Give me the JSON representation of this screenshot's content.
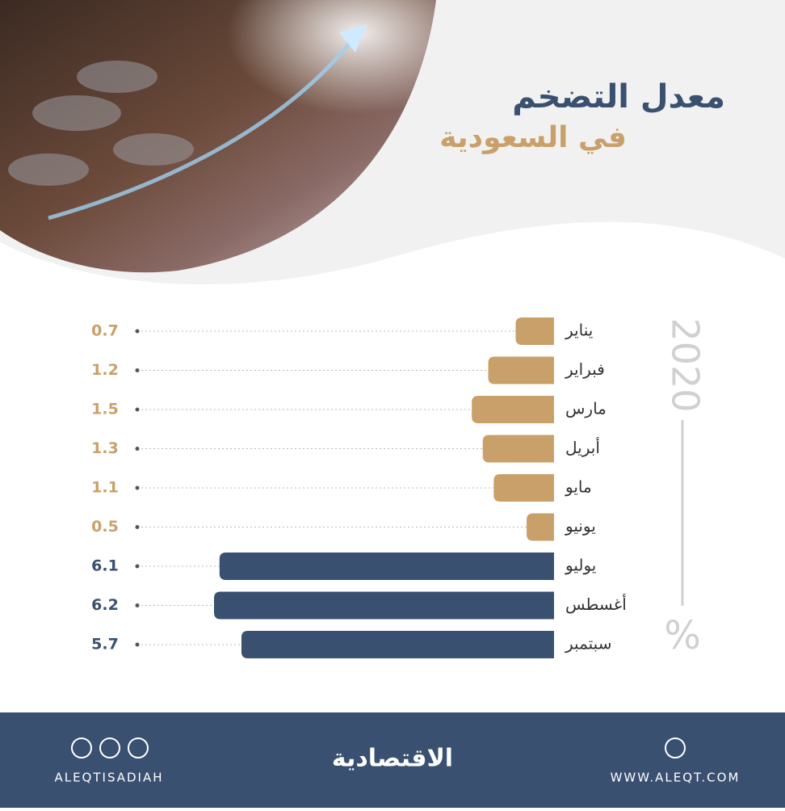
{
  "chart_data": {
    "type": "bar",
    "orientation": "horizontal",
    "title": "معدل التضخم",
    "subtitle": "في السعودية",
    "year_label": "2020",
    "unit_label": "%",
    "categories": [
      "يناير",
      "فبراير",
      "مارس",
      "أبريل",
      "مايو",
      "يونيو",
      "يوليو",
      "أغسطس",
      "سبتمبر"
    ],
    "values": [
      0.7,
      1.2,
      1.5,
      1.3,
      1.1,
      0.5,
      6.1,
      6.2,
      5.7
    ],
    "colors": [
      "#c9a06a",
      "#c9a06a",
      "#c9a06a",
      "#c9a06a",
      "#c9a06a",
      "#c9a06a",
      "#3a5070",
      "#3a5070",
      "#3a5070"
    ]
  },
  "footer": {
    "logo": "الاقتصادية",
    "social_handle": "ALEQTISADIAH",
    "website": "WWW.ALEQT.COM"
  }
}
